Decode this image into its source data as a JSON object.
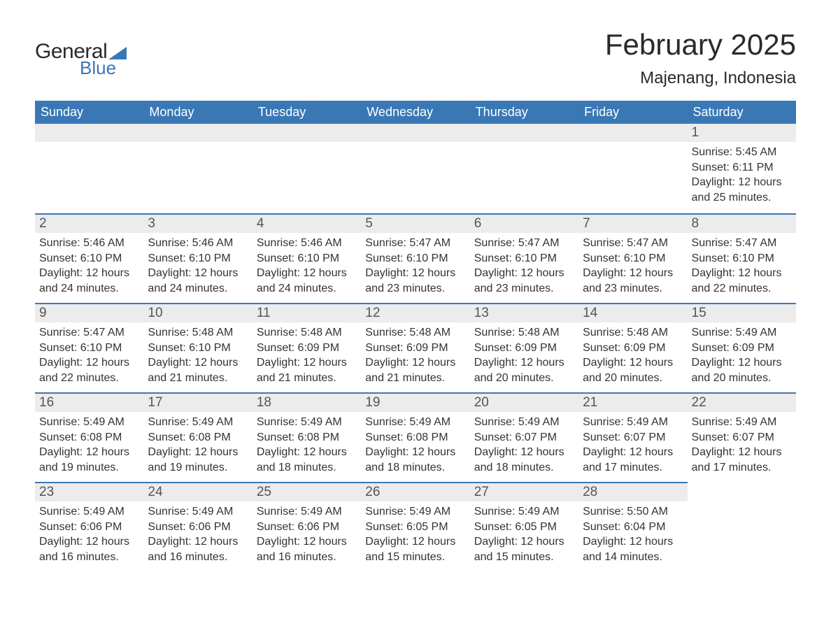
{
  "brand": {
    "word1": "General",
    "word2": "Blue",
    "text_color": "#2a2a2a",
    "accent_color": "#3a78b5",
    "flag_color": "#3a78b5"
  },
  "title": "February 2025",
  "location": "Majenang, Indonesia",
  "colors": {
    "header_bg": "#3a78b5",
    "header_text": "#ffffff",
    "daynum_bg": "#ececec",
    "daynum_text": "#555555",
    "body_text": "#333333",
    "page_bg": "#ffffff",
    "row_divider": "#3a78b5"
  },
  "fonts": {
    "title_size_pt": 32,
    "location_size_pt": 18,
    "weekday_size_pt": 14,
    "daynum_size_pt": 14,
    "body_size_pt": 12
  },
  "weekdays": [
    "Sunday",
    "Monday",
    "Tuesday",
    "Wednesday",
    "Thursday",
    "Friday",
    "Saturday"
  ],
  "weeks": [
    [
      null,
      null,
      null,
      null,
      null,
      null,
      {
        "n": "1",
        "sunrise": "Sunrise: 5:45 AM",
        "sunset": "Sunset: 6:11 PM",
        "dl1": "Daylight: 12 hours",
        "dl2": "and 25 minutes."
      }
    ],
    [
      {
        "n": "2",
        "sunrise": "Sunrise: 5:46 AM",
        "sunset": "Sunset: 6:10 PM",
        "dl1": "Daylight: 12 hours",
        "dl2": "and 24 minutes."
      },
      {
        "n": "3",
        "sunrise": "Sunrise: 5:46 AM",
        "sunset": "Sunset: 6:10 PM",
        "dl1": "Daylight: 12 hours",
        "dl2": "and 24 minutes."
      },
      {
        "n": "4",
        "sunrise": "Sunrise: 5:46 AM",
        "sunset": "Sunset: 6:10 PM",
        "dl1": "Daylight: 12 hours",
        "dl2": "and 24 minutes."
      },
      {
        "n": "5",
        "sunrise": "Sunrise: 5:47 AM",
        "sunset": "Sunset: 6:10 PM",
        "dl1": "Daylight: 12 hours",
        "dl2": "and 23 minutes."
      },
      {
        "n": "6",
        "sunrise": "Sunrise: 5:47 AM",
        "sunset": "Sunset: 6:10 PM",
        "dl1": "Daylight: 12 hours",
        "dl2": "and 23 minutes."
      },
      {
        "n": "7",
        "sunrise": "Sunrise: 5:47 AM",
        "sunset": "Sunset: 6:10 PM",
        "dl1": "Daylight: 12 hours",
        "dl2": "and 23 minutes."
      },
      {
        "n": "8",
        "sunrise": "Sunrise: 5:47 AM",
        "sunset": "Sunset: 6:10 PM",
        "dl1": "Daylight: 12 hours",
        "dl2": "and 22 minutes."
      }
    ],
    [
      {
        "n": "9",
        "sunrise": "Sunrise: 5:47 AM",
        "sunset": "Sunset: 6:10 PM",
        "dl1": "Daylight: 12 hours",
        "dl2": "and 22 minutes."
      },
      {
        "n": "10",
        "sunrise": "Sunrise: 5:48 AM",
        "sunset": "Sunset: 6:10 PM",
        "dl1": "Daylight: 12 hours",
        "dl2": "and 21 minutes."
      },
      {
        "n": "11",
        "sunrise": "Sunrise: 5:48 AM",
        "sunset": "Sunset: 6:09 PM",
        "dl1": "Daylight: 12 hours",
        "dl2": "and 21 minutes."
      },
      {
        "n": "12",
        "sunrise": "Sunrise: 5:48 AM",
        "sunset": "Sunset: 6:09 PM",
        "dl1": "Daylight: 12 hours",
        "dl2": "and 21 minutes."
      },
      {
        "n": "13",
        "sunrise": "Sunrise: 5:48 AM",
        "sunset": "Sunset: 6:09 PM",
        "dl1": "Daylight: 12 hours",
        "dl2": "and 20 minutes."
      },
      {
        "n": "14",
        "sunrise": "Sunrise: 5:48 AM",
        "sunset": "Sunset: 6:09 PM",
        "dl1": "Daylight: 12 hours",
        "dl2": "and 20 minutes."
      },
      {
        "n": "15",
        "sunrise": "Sunrise: 5:49 AM",
        "sunset": "Sunset: 6:09 PM",
        "dl1": "Daylight: 12 hours",
        "dl2": "and 20 minutes."
      }
    ],
    [
      {
        "n": "16",
        "sunrise": "Sunrise: 5:49 AM",
        "sunset": "Sunset: 6:08 PM",
        "dl1": "Daylight: 12 hours",
        "dl2": "and 19 minutes."
      },
      {
        "n": "17",
        "sunrise": "Sunrise: 5:49 AM",
        "sunset": "Sunset: 6:08 PM",
        "dl1": "Daylight: 12 hours",
        "dl2": "and 19 minutes."
      },
      {
        "n": "18",
        "sunrise": "Sunrise: 5:49 AM",
        "sunset": "Sunset: 6:08 PM",
        "dl1": "Daylight: 12 hours",
        "dl2": "and 18 minutes."
      },
      {
        "n": "19",
        "sunrise": "Sunrise: 5:49 AM",
        "sunset": "Sunset: 6:08 PM",
        "dl1": "Daylight: 12 hours",
        "dl2": "and 18 minutes."
      },
      {
        "n": "20",
        "sunrise": "Sunrise: 5:49 AM",
        "sunset": "Sunset: 6:07 PM",
        "dl1": "Daylight: 12 hours",
        "dl2": "and 18 minutes."
      },
      {
        "n": "21",
        "sunrise": "Sunrise: 5:49 AM",
        "sunset": "Sunset: 6:07 PM",
        "dl1": "Daylight: 12 hours",
        "dl2": "and 17 minutes."
      },
      {
        "n": "22",
        "sunrise": "Sunrise: 5:49 AM",
        "sunset": "Sunset: 6:07 PM",
        "dl1": "Daylight: 12 hours",
        "dl2": "and 17 minutes."
      }
    ],
    [
      {
        "n": "23",
        "sunrise": "Sunrise: 5:49 AM",
        "sunset": "Sunset: 6:06 PM",
        "dl1": "Daylight: 12 hours",
        "dl2": "and 16 minutes."
      },
      {
        "n": "24",
        "sunrise": "Sunrise: 5:49 AM",
        "sunset": "Sunset: 6:06 PM",
        "dl1": "Daylight: 12 hours",
        "dl2": "and 16 minutes."
      },
      {
        "n": "25",
        "sunrise": "Sunrise: 5:49 AM",
        "sunset": "Sunset: 6:06 PM",
        "dl1": "Daylight: 12 hours",
        "dl2": "and 16 minutes."
      },
      {
        "n": "26",
        "sunrise": "Sunrise: 5:49 AM",
        "sunset": "Sunset: 6:05 PM",
        "dl1": "Daylight: 12 hours",
        "dl2": "and 15 minutes."
      },
      {
        "n": "27",
        "sunrise": "Sunrise: 5:49 AM",
        "sunset": "Sunset: 6:05 PM",
        "dl1": "Daylight: 12 hours",
        "dl2": "and 15 minutes."
      },
      {
        "n": "28",
        "sunrise": "Sunrise: 5:50 AM",
        "sunset": "Sunset: 6:04 PM",
        "dl1": "Daylight: 12 hours",
        "dl2": "and 14 minutes."
      },
      null
    ]
  ]
}
